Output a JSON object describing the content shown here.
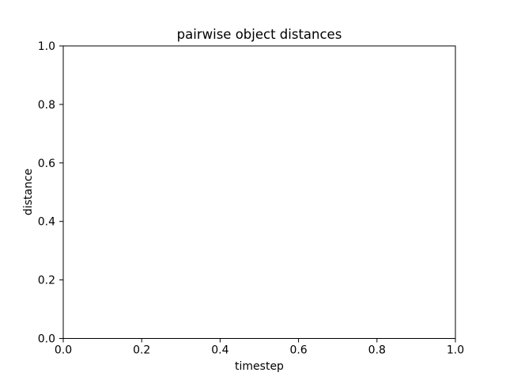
{
  "chart_data": {
    "type": "line",
    "title": "pairwise object distances",
    "xlabel": "timestep",
    "ylabel": "distance",
    "xlim": [
      0.0,
      1.0
    ],
    "ylim": [
      0.0,
      1.0
    ],
    "xticks": [
      0.0,
      0.2,
      0.4,
      0.6,
      0.8,
      1.0
    ],
    "yticks": [
      0.0,
      0.2,
      0.4,
      0.6,
      0.8,
      1.0
    ],
    "xtick_labels": [
      "0.0",
      "0.2",
      "0.4",
      "0.6",
      "0.8",
      "1.0"
    ],
    "ytick_labels": [
      "0.0",
      "0.2",
      "0.4",
      "0.6",
      "0.8",
      "1.0"
    ],
    "grid": false,
    "series": []
  },
  "colors": {
    "axes": "#000000",
    "background": "#ffffff"
  }
}
